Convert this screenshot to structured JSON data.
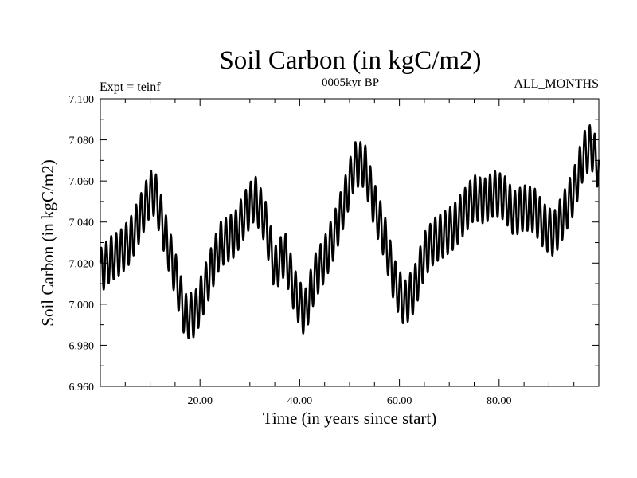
{
  "chart_data": {
    "type": "line",
    "title": "Soil Carbon (in kgC/m2)",
    "subtitle_left": "Expt = teinf",
    "subtitle_center": "0005kyr BP",
    "subtitle_right": "ALL_MONTHS",
    "xlabel": "Time (in years since start)",
    "ylabel": "Soil Carbon (in kgC/m2)",
    "xlim": [
      0,
      100
    ],
    "ylim": [
      6.96,
      7.1
    ],
    "x_ticks": [
      20,
      40,
      60,
      80
    ],
    "x_tick_labels": [
      "20.00",
      "40.00",
      "60.00",
      "80.00"
    ],
    "y_ticks": [
      6.96,
      6.98,
      7.0,
      7.02,
      7.04,
      7.06,
      7.08,
      7.1
    ],
    "y_tick_labels": [
      "6.960",
      "6.980",
      "7.000",
      "7.020",
      "7.040",
      "7.060",
      "7.080",
      "7.100"
    ],
    "seasonal_amplitude": 0.011,
    "series": [
      {
        "name": "Soil Carbon",
        "color": "#000000",
        "x": [
          0,
          2,
          4,
          6,
          8,
          10,
          11,
          13,
          15,
          17,
          19,
          21,
          24,
          27,
          29,
          31,
          33,
          35,
          37,
          39,
          41,
          43,
          45,
          47,
          49,
          51,
          53,
          55,
          57,
          59,
          61,
          63,
          65,
          67,
          69,
          71,
          73,
          75,
          77,
          79,
          81,
          83,
          85,
          87,
          89,
          91,
          93,
          95,
          97,
          98.5,
          100
        ],
        "y": [
          7.016,
          7.022,
          7.025,
          7.031,
          7.042,
          7.054,
          7.054,
          7.034,
          7.015,
          6.994,
          6.995,
          7.008,
          7.029,
          7.034,
          7.044,
          7.052,
          7.041,
          7.017,
          7.025,
          7.006,
          6.995,
          7.013,
          7.022,
          7.034,
          7.05,
          7.068,
          7.068,
          7.048,
          7.033,
          7.011,
          7.0,
          7.007,
          7.024,
          7.031,
          7.034,
          7.038,
          7.045,
          7.052,
          7.05,
          7.054,
          7.052,
          7.044,
          7.047,
          7.046,
          7.038,
          7.034,
          7.044,
          7.055,
          7.073,
          7.077,
          7.066
        ]
      }
    ]
  }
}
